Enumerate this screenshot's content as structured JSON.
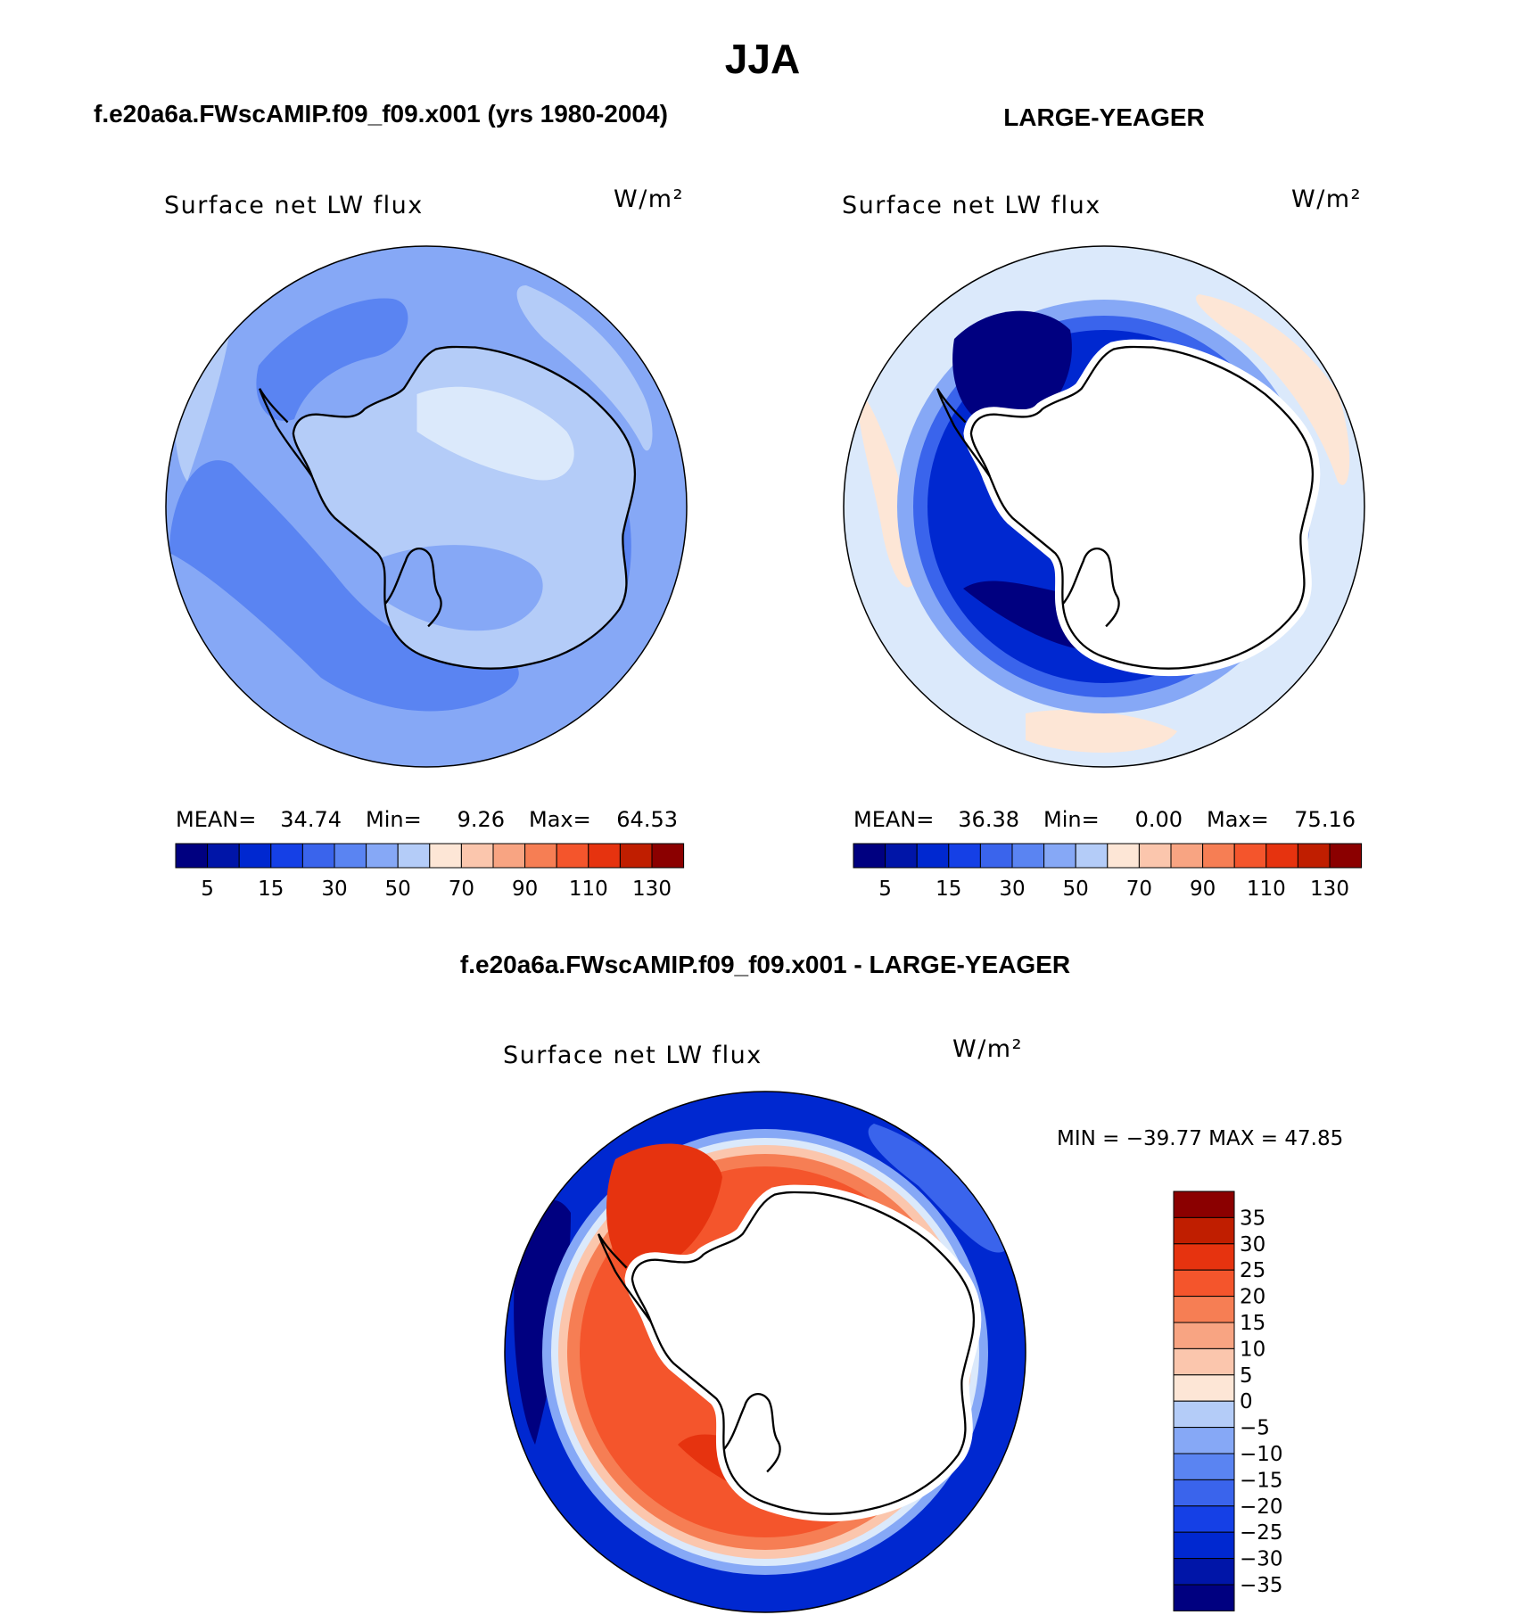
{
  "figure": {
    "season": "JJA",
    "panel_a_title": "f.e20a6a.FWscAMIP.f09_f09.x001 (yrs 1980-2004)",
    "panel_b_title": "LARGE-YEAGER",
    "panel_c_title": "f.e20a6a.FWscAMIP.f09_f09.x001 - LARGE-YEAGER"
  },
  "colors": {
    "land": "#ffffff",
    "coast": "#000000",
    "blues": [
      "#000080",
      "#0015a8",
      "#0028d0",
      "#1540e6",
      "#3a64ec",
      "#5a84f2",
      "#86a8f6",
      "#b4ccf8",
      "#dbe9fb"
    ],
    "reds": [
      "#fde6d6",
      "#fbc6ad",
      "#f8a482",
      "#f67e54",
      "#f4552c",
      "#e6330f",
      "#c01e00",
      "#8b0000"
    ]
  },
  "chart_data": [
    {
      "type": "map",
      "projection": "polar stereographic (south)",
      "variable": "Surface net LW flux",
      "units": "W/m²",
      "stats": {
        "mean_label": "MEAN=",
        "mean": "34.74",
        "min_label": "Min=",
        "min": "9.26",
        "max_label": "Max=",
        "max": "64.53"
      },
      "contour_levels": [
        5,
        10,
        15,
        20,
        30,
        40,
        50,
        60,
        70,
        80,
        90,
        100,
        110,
        120,
        130
      ],
      "colorbar_ticks": [
        "5",
        "15",
        "30",
        "50",
        "70",
        "90",
        "110",
        "130"
      ]
    },
    {
      "type": "map",
      "projection": "polar stereographic (south)",
      "variable": "Surface net LW flux",
      "units": "W/m²",
      "stats": {
        "mean_label": "MEAN=",
        "mean": "36.38",
        "min_label": "Min=",
        "min": "0.00",
        "max_label": "Max=",
        "max": "75.16"
      },
      "contour_levels": [
        5,
        10,
        15,
        20,
        30,
        40,
        50,
        60,
        70,
        80,
        90,
        100,
        110,
        120,
        130
      ],
      "colorbar_ticks": [
        "5",
        "15",
        "30",
        "50",
        "70",
        "90",
        "110",
        "130"
      ]
    },
    {
      "type": "map",
      "projection": "polar stereographic (south)",
      "variable": "Surface net LW flux",
      "units": "W/m²",
      "stats_text": "MIN = −39.77 MAX =  47.85",
      "contour_levels": [
        -35,
        -30,
        -25,
        -20,
        -15,
        -10,
        -5,
        0,
        5,
        10,
        15,
        20,
        25,
        30,
        35
      ],
      "colorbar_ticks": [
        "35",
        "30",
        "25",
        "20",
        "15",
        "10",
        "5",
        "0",
        "−5",
        "−10",
        "−15",
        "−20",
        "−25",
        "−30",
        "−35"
      ]
    }
  ]
}
